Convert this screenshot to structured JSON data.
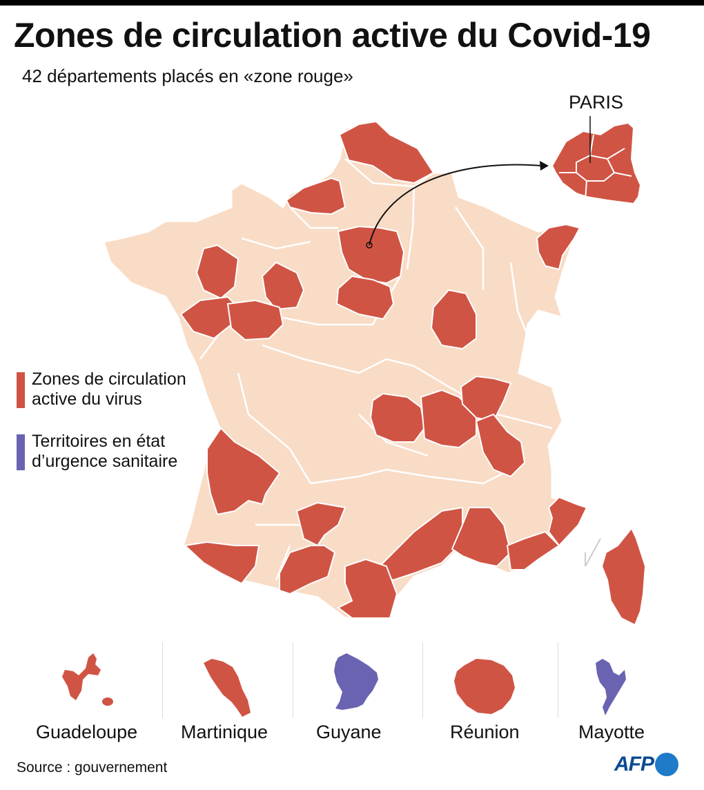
{
  "title": "Zones de circulation active du Covid-19",
  "subtitle": "42 départements placés en «zone rouge»",
  "inset_label": "PARIS",
  "colors": {
    "red_zone": "#d05444",
    "other_zone": "#f9dcc6",
    "emergency": "#6a63b1",
    "border": "#ffffff"
  },
  "legend": [
    {
      "label": "Zones de circulation active du virus",
      "color": "#d05444"
    },
    {
      "label": "Territoires en état d’urgence sanitaire",
      "color": "#6a63b1"
    }
  ],
  "overseas": [
    {
      "name": "Guadeloupe",
      "status": "red_zone"
    },
    {
      "name": "Martinique",
      "status": "red_zone"
    },
    {
      "name": "Guyane",
      "status": "emergency"
    },
    {
      "name": "Réunion",
      "status": "red_zone"
    },
    {
      "name": "Mayotte",
      "status": "emergency"
    }
  ],
  "source": "Source : gouvernement",
  "logo": "AFP"
}
